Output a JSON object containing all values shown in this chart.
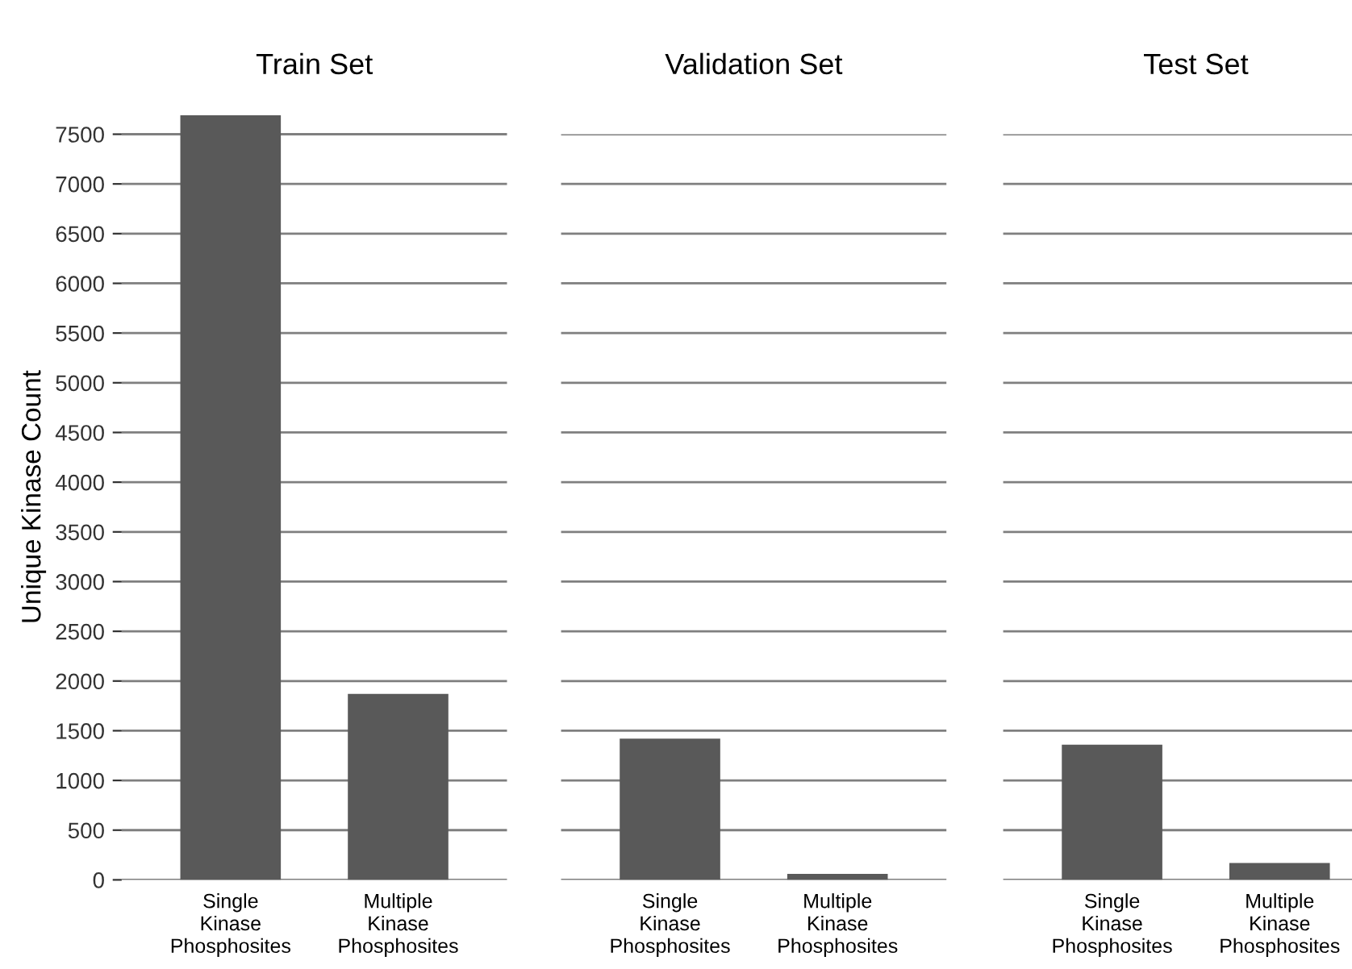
{
  "chart_data": [
    {
      "type": "bar",
      "title": "Train Set",
      "ylabel": "Unique Kinase Count",
      "categories": [
        "Single Kinase Phosphosites",
        "Multiple Kinase Phosphosites"
      ],
      "values": [
        7690,
        1870
      ],
      "color": "#595959",
      "ylim": [
        0,
        7700
      ],
      "yticks": [
        0,
        500,
        1000,
        1500,
        2000,
        2500,
        3000,
        3500,
        4000,
        4500,
        5000,
        5500,
        6000,
        6500,
        7000,
        7500
      ],
      "grid": "y"
    },
    {
      "type": "bar",
      "title": "Validation Set",
      "categories": [
        "Single Kinase Phosphosites",
        "Multiple Kinase Phosphosites"
      ],
      "values": [
        1420,
        60
      ],
      "color": "#595959",
      "ylim": [
        0,
        7500
      ],
      "yticks": [
        0,
        500,
        1000,
        1500,
        2000,
        2500,
        3000,
        3500,
        4000,
        4500,
        5000,
        5500,
        6000,
        6500,
        7000,
        7500
      ],
      "grid": "y",
      "tick_labels": "x"
    },
    {
      "type": "bar",
      "title": "Test Set",
      "categories": [
        "Single Kinase Phosphosites",
        "Multiple Kinase Phosphosites"
      ],
      "values": [
        1360,
        170
      ],
      "color": "#595959",
      "ylim": [
        0,
        7500
      ],
      "yticks": [
        0,
        500,
        1000,
        1500,
        2000,
        2500,
        3000,
        3500,
        4000,
        4500,
        5000,
        5500,
        6000,
        6500,
        7000,
        7500
      ],
      "grid": "y",
      "tick_labels": "x"
    }
  ]
}
